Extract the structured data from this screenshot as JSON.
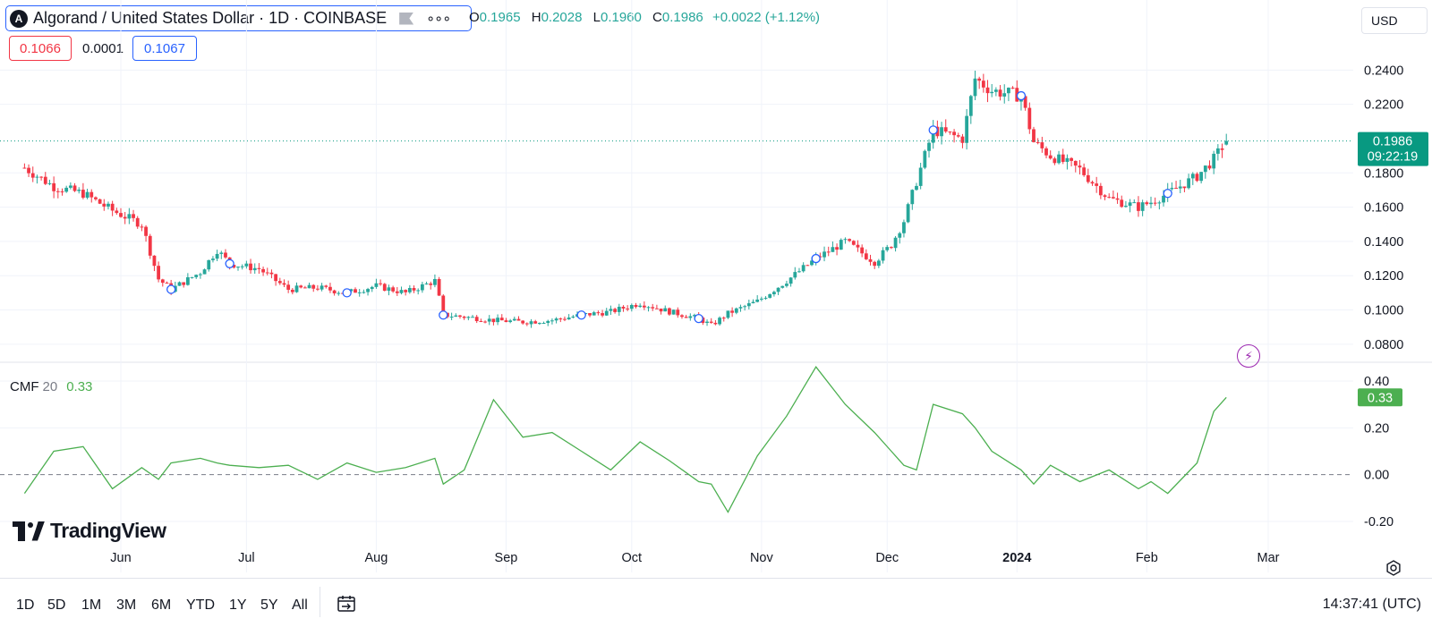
{
  "header": {
    "logo_letter": "A",
    "symbol_title": "Algorand / United States Dollar · 1D · COINBASE",
    "ohlc": {
      "o_label": "O",
      "o": "0.1965",
      "h_label": "H",
      "h": "0.2028",
      "l_label": "L",
      "l": "0.1960",
      "c_label": "C",
      "c": "0.1986",
      "change": "+0.0022 (+1.12%)"
    },
    "bid": "0.1066",
    "spread": "0.0001",
    "ask": "0.1067",
    "currency": "USD",
    "currency_icon": "chevron-down-icon"
  },
  "indicator": {
    "name": "CMF",
    "length": "20",
    "value": "0.33"
  },
  "brand": "TradingView",
  "timeframes": [
    "1D",
    "5D",
    "1M",
    "3M",
    "6M",
    "YTD",
    "1Y",
    "5Y",
    "All"
  ],
  "clock": "14:37:41 (UTC)",
  "colors": {
    "up": "#26a69a",
    "down": "#f23645",
    "cmf": "#4caf50",
    "price_line": "#089981",
    "marker": "#2962ff",
    "accent": "#2962ff"
  },
  "chart_data": [
    {
      "type": "candlestick",
      "title": "Algorand / United States Dollar · 1D · COINBASE",
      "x_ticks": [
        "Jun",
        "Jul",
        "Aug",
        "Sep",
        "Oct",
        "Nov",
        "Dec",
        "2024",
        "Feb",
        "Mar"
      ],
      "y_ticks": [
        "0.0800",
        "0.1000",
        "0.1200",
        "0.1400",
        "0.1600",
        "0.1800",
        "0.2200",
        "0.2400"
      ],
      "ylim": [
        0.07,
        0.26
      ],
      "last_price": "0.1986",
      "countdown": "09:22:19",
      "dates": [
        "2023-05-09",
        "2023-05-16",
        "2023-05-23",
        "2023-05-30",
        "2023-06-06",
        "2023-06-10",
        "2023-06-13",
        "2023-06-20",
        "2023-06-24",
        "2023-06-27",
        "2023-07-04",
        "2023-07-11",
        "2023-07-18",
        "2023-07-25",
        "2023-08-01",
        "2023-08-08",
        "2023-08-15",
        "2023-08-17",
        "2023-08-22",
        "2023-08-29",
        "2023-09-05",
        "2023-09-12",
        "2023-09-19",
        "2023-09-26",
        "2023-10-03",
        "2023-10-10",
        "2023-10-17",
        "2023-10-20",
        "2023-10-24",
        "2023-10-31",
        "2023-11-07",
        "2023-11-14",
        "2023-11-21",
        "2023-11-28",
        "2023-12-02",
        "2023-12-05",
        "2023-12-08",
        "2023-12-12",
        "2023-12-19",
        "2023-12-22",
        "2023-12-26",
        "2024-01-02",
        "2024-01-05",
        "2024-01-09",
        "2024-01-16",
        "2024-01-23",
        "2024-01-30",
        "2024-02-02",
        "2024-02-06",
        "2024-02-13",
        "2024-02-17",
        "2024-02-20"
      ],
      "close": [
        0.183,
        0.172,
        0.168,
        0.158,
        0.15,
        0.118,
        0.112,
        0.122,
        0.135,
        0.127,
        0.124,
        0.112,
        0.113,
        0.11,
        0.114,
        0.11,
        0.117,
        0.097,
        0.096,
        0.094,
        0.093,
        0.094,
        0.097,
        0.099,
        0.104,
        0.099,
        0.095,
        0.091,
        0.098,
        0.105,
        0.117,
        0.13,
        0.14,
        0.128,
        0.138,
        0.152,
        0.175,
        0.205,
        0.2,
        0.235,
        0.228,
        0.225,
        0.198,
        0.19,
        0.182,
        0.165,
        0.16,
        0.163,
        0.168,
        0.178,
        0.188,
        0.1986
      ],
      "cmf_ticks": [
        "0.40",
        "0.20",
        "0.00",
        "-0.20"
      ],
      "cmf_ylim": [
        -0.28,
        0.48
      ],
      "cmf": [
        -0.08,
        0.1,
        0.12,
        -0.06,
        0.03,
        -0.02,
        0.05,
        0.07,
        0.05,
        0.04,
        0.03,
        0.04,
        -0.02,
        0.05,
        0.01,
        0.03,
        0.07,
        -0.04,
        0.02,
        0.32,
        0.16,
        0.18,
        0.1,
        0.02,
        0.14,
        0.06,
        -0.03,
        -0.04,
        -0.16,
        0.08,
        0.25,
        0.46,
        0.3,
        0.18,
        0.1,
        0.04,
        0.02,
        0.3,
        0.26,
        0.2,
        0.1,
        0.02,
        -0.04,
        0.04,
        -0.03,
        0.02,
        -0.06,
        -0.03,
        -0.08,
        0.05,
        0.27,
        0.33
      ]
    }
  ]
}
